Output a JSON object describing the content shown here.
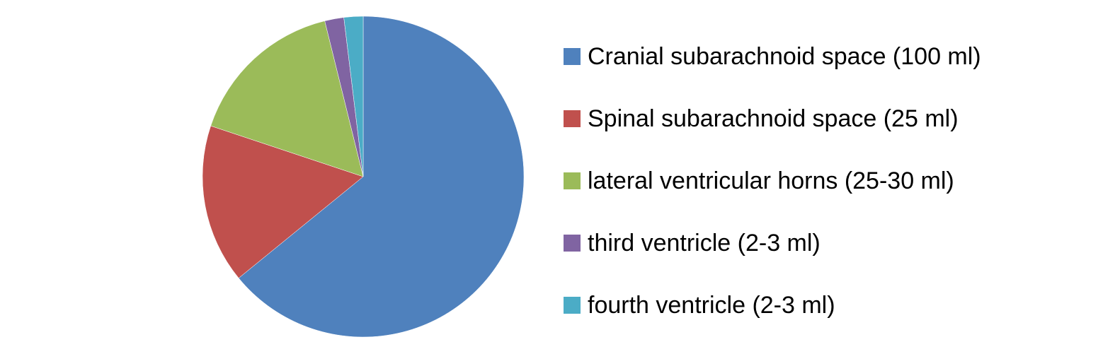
{
  "chart_data": {
    "type": "pie",
    "categories": [
      "Cranial subarachnoid space (100 ml)",
      "Spinal subarachnoid space (25 ml)",
      "lateral ventricular horns (25-30 ml)",
      "third ventricle (2-3 ml)",
      "fourth ventricle (2-3 ml)"
    ],
    "values": [
      100,
      25,
      25,
      3,
      3
    ],
    "colors": [
      "#4F81BD",
      "#C0504D",
      "#9BBB59",
      "#8064A2",
      "#4BACC6"
    ],
    "legend_position": "right",
    "start_angle": "top",
    "direction": "clockwise"
  }
}
